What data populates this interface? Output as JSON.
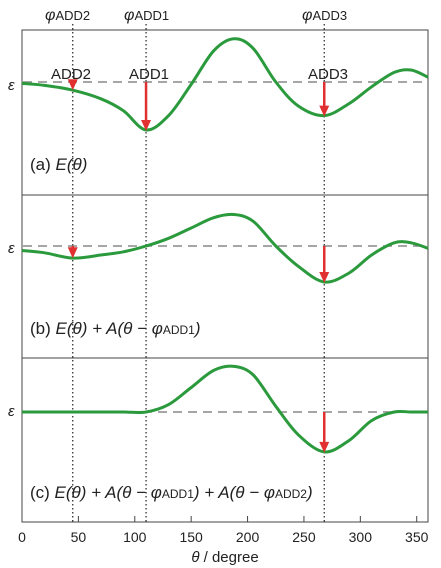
{
  "figure": {
    "top_labels": {
      "add2": {
        "sym": "φ",
        "sub": "ADD2"
      },
      "add1": {
        "sym": "φ",
        "sub": "ADD1"
      },
      "add3": {
        "sym": "φ",
        "sub": "ADD3"
      }
    },
    "epsilon_label": "ε",
    "colors": {
      "curve": "#2a9a3c",
      "arrow": "#e03030",
      "dashed": "#888888",
      "frame": "#444444",
      "guide": "#222222"
    },
    "panels": [
      {
        "id": "a",
        "label": {
          "prefix": "(a) ",
          "main": "E(θ)",
          "tail": []
        },
        "add_labels": [
          {
            "text": "ADD2",
            "theta": 45
          },
          {
            "text": "ADD1",
            "theta": 110
          },
          {
            "text": "ADD3",
            "theta": 268
          }
        ],
        "arrows": [
          {
            "theta": 45,
            "from": 0.55,
            "to": 0.4
          },
          {
            "theta": 110,
            "from": 0.55,
            "to": -0.45
          },
          {
            "theta": 268,
            "from": 0.55,
            "to": -0.15
          }
        ]
      },
      {
        "id": "b",
        "label": {
          "prefix": "(b) ",
          "main": "E(θ) + A(θ − φ",
          "tail": [
            {
              "sub": "ADD1"
            },
            {
              "text": ")"
            }
          ]
        },
        "arrows": [
          {
            "theta": 45,
            "from": 0.55,
            "to": 0.3
          },
          {
            "theta": 268,
            "from": 0.55,
            "to": -0.25
          }
        ]
      },
      {
        "id": "c",
        "label": {
          "prefix": "(c) ",
          "main": "E(θ) + A(θ − φ",
          "tail": [
            {
              "sub": "ADD1"
            },
            {
              "text": ") + A(θ − φ"
            },
            {
              "sub": "ADD2"
            },
            {
              "text": ")"
            }
          ]
        },
        "arrows": [
          {
            "theta": 268,
            "from": 0.55,
            "to": -0.15
          }
        ]
      }
    ],
    "guides": [
      45,
      110,
      268
    ],
    "x_axis": {
      "ticks": [
        0,
        50,
        100,
        150,
        200,
        250,
        300,
        350
      ],
      "label": "θ / degree",
      "min": 0,
      "max": 360
    }
  },
  "chart_data": {
    "type": "line",
    "xlabel": "θ / degree",
    "xlim": [
      0,
      360
    ],
    "x": [
      0,
      20,
      45,
      70,
      90,
      110,
      130,
      150,
      170,
      188,
      205,
      225,
      245,
      268,
      290,
      310,
      330,
      345,
      360
    ],
    "series": [
      {
        "panel": "a",
        "y": [
          0.52,
          0.48,
          0.38,
          0.2,
          -0.05,
          -0.45,
          -0.15,
          0.5,
          1.2,
          1.45,
          1.25,
          0.55,
          0.05,
          -0.15,
          0.1,
          0.45,
          0.75,
          0.8,
          0.65
        ]
      },
      {
        "panel": "b",
        "y": [
          0.45,
          0.4,
          0.28,
          0.35,
          0.42,
          0.55,
          0.72,
          0.95,
          1.18,
          1.25,
          1.1,
          0.55,
          0.1,
          -0.25,
          -0.05,
          0.35,
          0.62,
          0.62,
          0.5
        ]
      },
      {
        "panel": "c",
        "y": [
          0.55,
          0.55,
          0.55,
          0.55,
          0.55,
          0.55,
          0.68,
          0.98,
          1.28,
          1.35,
          1.2,
          0.65,
          0.15,
          -0.15,
          0.05,
          0.4,
          0.55,
          0.55,
          0.55
        ]
      }
    ],
    "epsilon_level": 0.55
  }
}
